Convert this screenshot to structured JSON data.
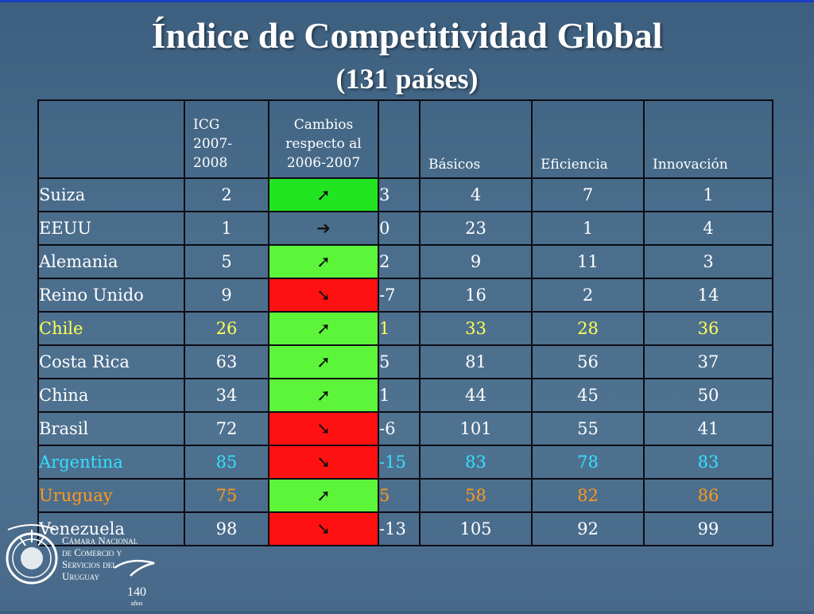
{
  "title": "Índice de Competitividad Global",
  "subtitle": "(131 países)",
  "table": {
    "headers": {
      "icg": [
        "ICG",
        "2007-",
        "2008"
      ],
      "cambios": [
        "Cambios",
        "respecto al",
        "2006-2007"
      ],
      "basicos": "Básicos",
      "eficiencia": "Eficiencia",
      "innovacion": "Innovación"
    },
    "rows": [
      {
        "country": "Suiza",
        "icg": "2",
        "trend": "up",
        "arrow": "➚",
        "delta": "3",
        "basicos": "4",
        "eficiencia": "7",
        "innovacion": "1",
        "color": "#ffffff"
      },
      {
        "country": "EEUU",
        "icg": "1",
        "trend": "flat",
        "arrow": "➔",
        "delta": "0",
        "basicos": "23",
        "eficiencia": "1",
        "innovacion": "4",
        "color": "#ffffff"
      },
      {
        "country": "Alemania",
        "icg": "5",
        "trend": "up",
        "arrow": "➚",
        "delta": "2",
        "basicos": "9",
        "eficiencia": "11",
        "innovacion": "3",
        "color": "#ffffff"
      },
      {
        "country": "Reino Unido",
        "icg": "9",
        "trend": "down",
        "arrow": "➘",
        "delta": "-7",
        "basicos": "16",
        "eficiencia": "2",
        "innovacion": "14",
        "color": "#ffffff"
      },
      {
        "country": "Chile",
        "icg": "26",
        "trend": "up",
        "arrow": "➚",
        "delta": "1",
        "basicos": "33",
        "eficiencia": "28",
        "innovacion": "36",
        "color": "#ffff55"
      },
      {
        "country": "Costa Rica",
        "icg": "63",
        "trend": "up",
        "arrow": "➚",
        "delta": "5",
        "basicos": "81",
        "eficiencia": "56",
        "innovacion": "37",
        "color": "#ffffff"
      },
      {
        "country": "China",
        "icg": "34",
        "trend": "up",
        "arrow": "➚",
        "delta": "1",
        "basicos": "44",
        "eficiencia": "45",
        "innovacion": "50",
        "color": "#ffffff"
      },
      {
        "country": "Brasil",
        "icg": "72",
        "trend": "down",
        "arrow": "➘",
        "delta": "-6",
        "basicos": "101",
        "eficiencia": "55",
        "innovacion": "41",
        "color": "#ffffff"
      },
      {
        "country": "Argentina",
        "icg": "85",
        "trend": "down",
        "arrow": "➘",
        "delta": "-15",
        "basicos": "83",
        "eficiencia": "78",
        "innovacion": "83",
        "color": "#33e0ff"
      },
      {
        "country": "Uruguay",
        "icg": "75",
        "trend": "up",
        "arrow": "➚",
        "delta": "5",
        "basicos": "58",
        "eficiencia": "82",
        "innovacion": "86",
        "color": "#ff9a1a"
      },
      {
        "country": "Venezuela",
        "icg": "98",
        "trend": "down",
        "arrow": "➘",
        "delta": "-13",
        "basicos": "105",
        "eficiencia": "92",
        "innovacion": "99",
        "color": "#ffffff"
      }
    ]
  },
  "logo": {
    "lines": [
      "Cámara Nacional",
      "de Comercio y",
      "Servicios del",
      "Uruguay"
    ],
    "years": "140",
    "years_label": "años",
    "seal_text": "BOLSA DE COMERCIO URUGUAY"
  }
}
